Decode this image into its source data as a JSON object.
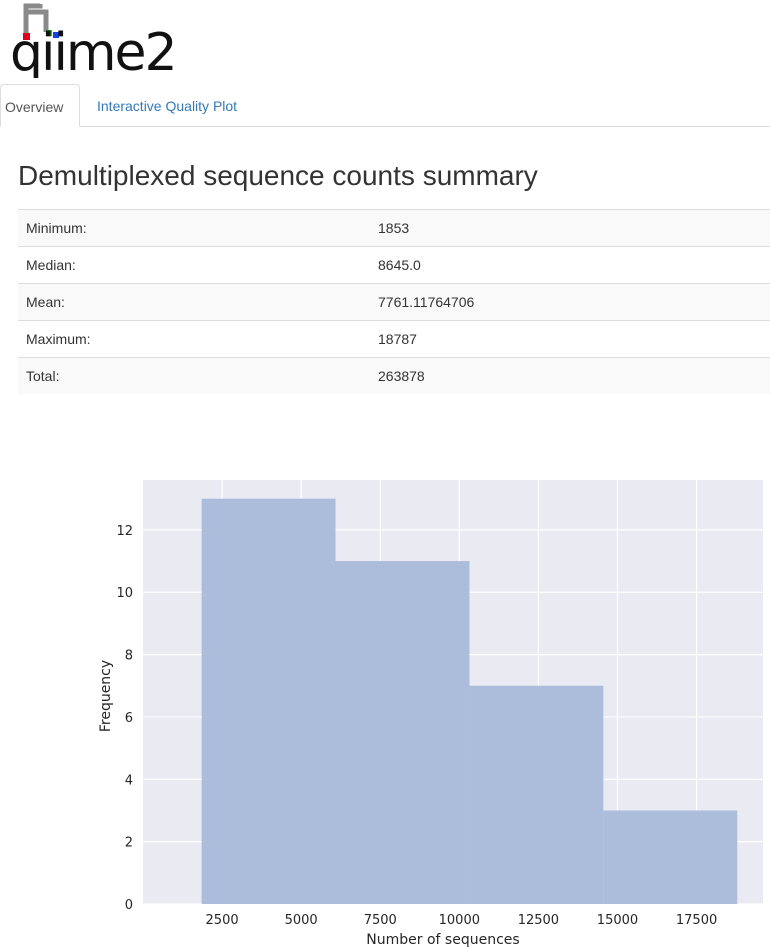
{
  "app": {
    "logo_text": "qiime2"
  },
  "tabs": [
    {
      "label": "Overview",
      "active": true
    },
    {
      "label": "Interactive Quality Plot",
      "active": false
    }
  ],
  "page_title": "Demultiplexed sequence counts summary",
  "summary_rows": [
    {
      "label": "Minimum:",
      "value": "1853"
    },
    {
      "label": "Median:",
      "value": "8645.0"
    },
    {
      "label": "Mean:",
      "value": "7761.11764706"
    },
    {
      "label": "Maximum:",
      "value": "18787"
    },
    {
      "label": "Total:",
      "value": "263878"
    }
  ],
  "chart_data": {
    "type": "bar",
    "title": "",
    "xlabel": "Number of sequences",
    "ylabel": "Frequency",
    "bins": [
      {
        "start": 1853,
        "end": 6086,
        "count": 13
      },
      {
        "start": 6086,
        "end": 10320,
        "count": 11
      },
      {
        "start": 10320,
        "end": 14553,
        "count": 7
      },
      {
        "start": 14553,
        "end": 18787,
        "count": 3
      }
    ],
    "xlim": [
      0,
      19600
    ],
    "ylim": [
      0,
      13.6
    ],
    "xticks": [
      2500,
      5000,
      7500,
      10000,
      12500,
      15000,
      17500
    ],
    "yticks": [
      0,
      2,
      4,
      6,
      8,
      10,
      12
    ],
    "grid": true,
    "colors": {
      "bar": "#a9b9d9",
      "background": "#eaeaf2",
      "grid": "#ffffff"
    }
  }
}
